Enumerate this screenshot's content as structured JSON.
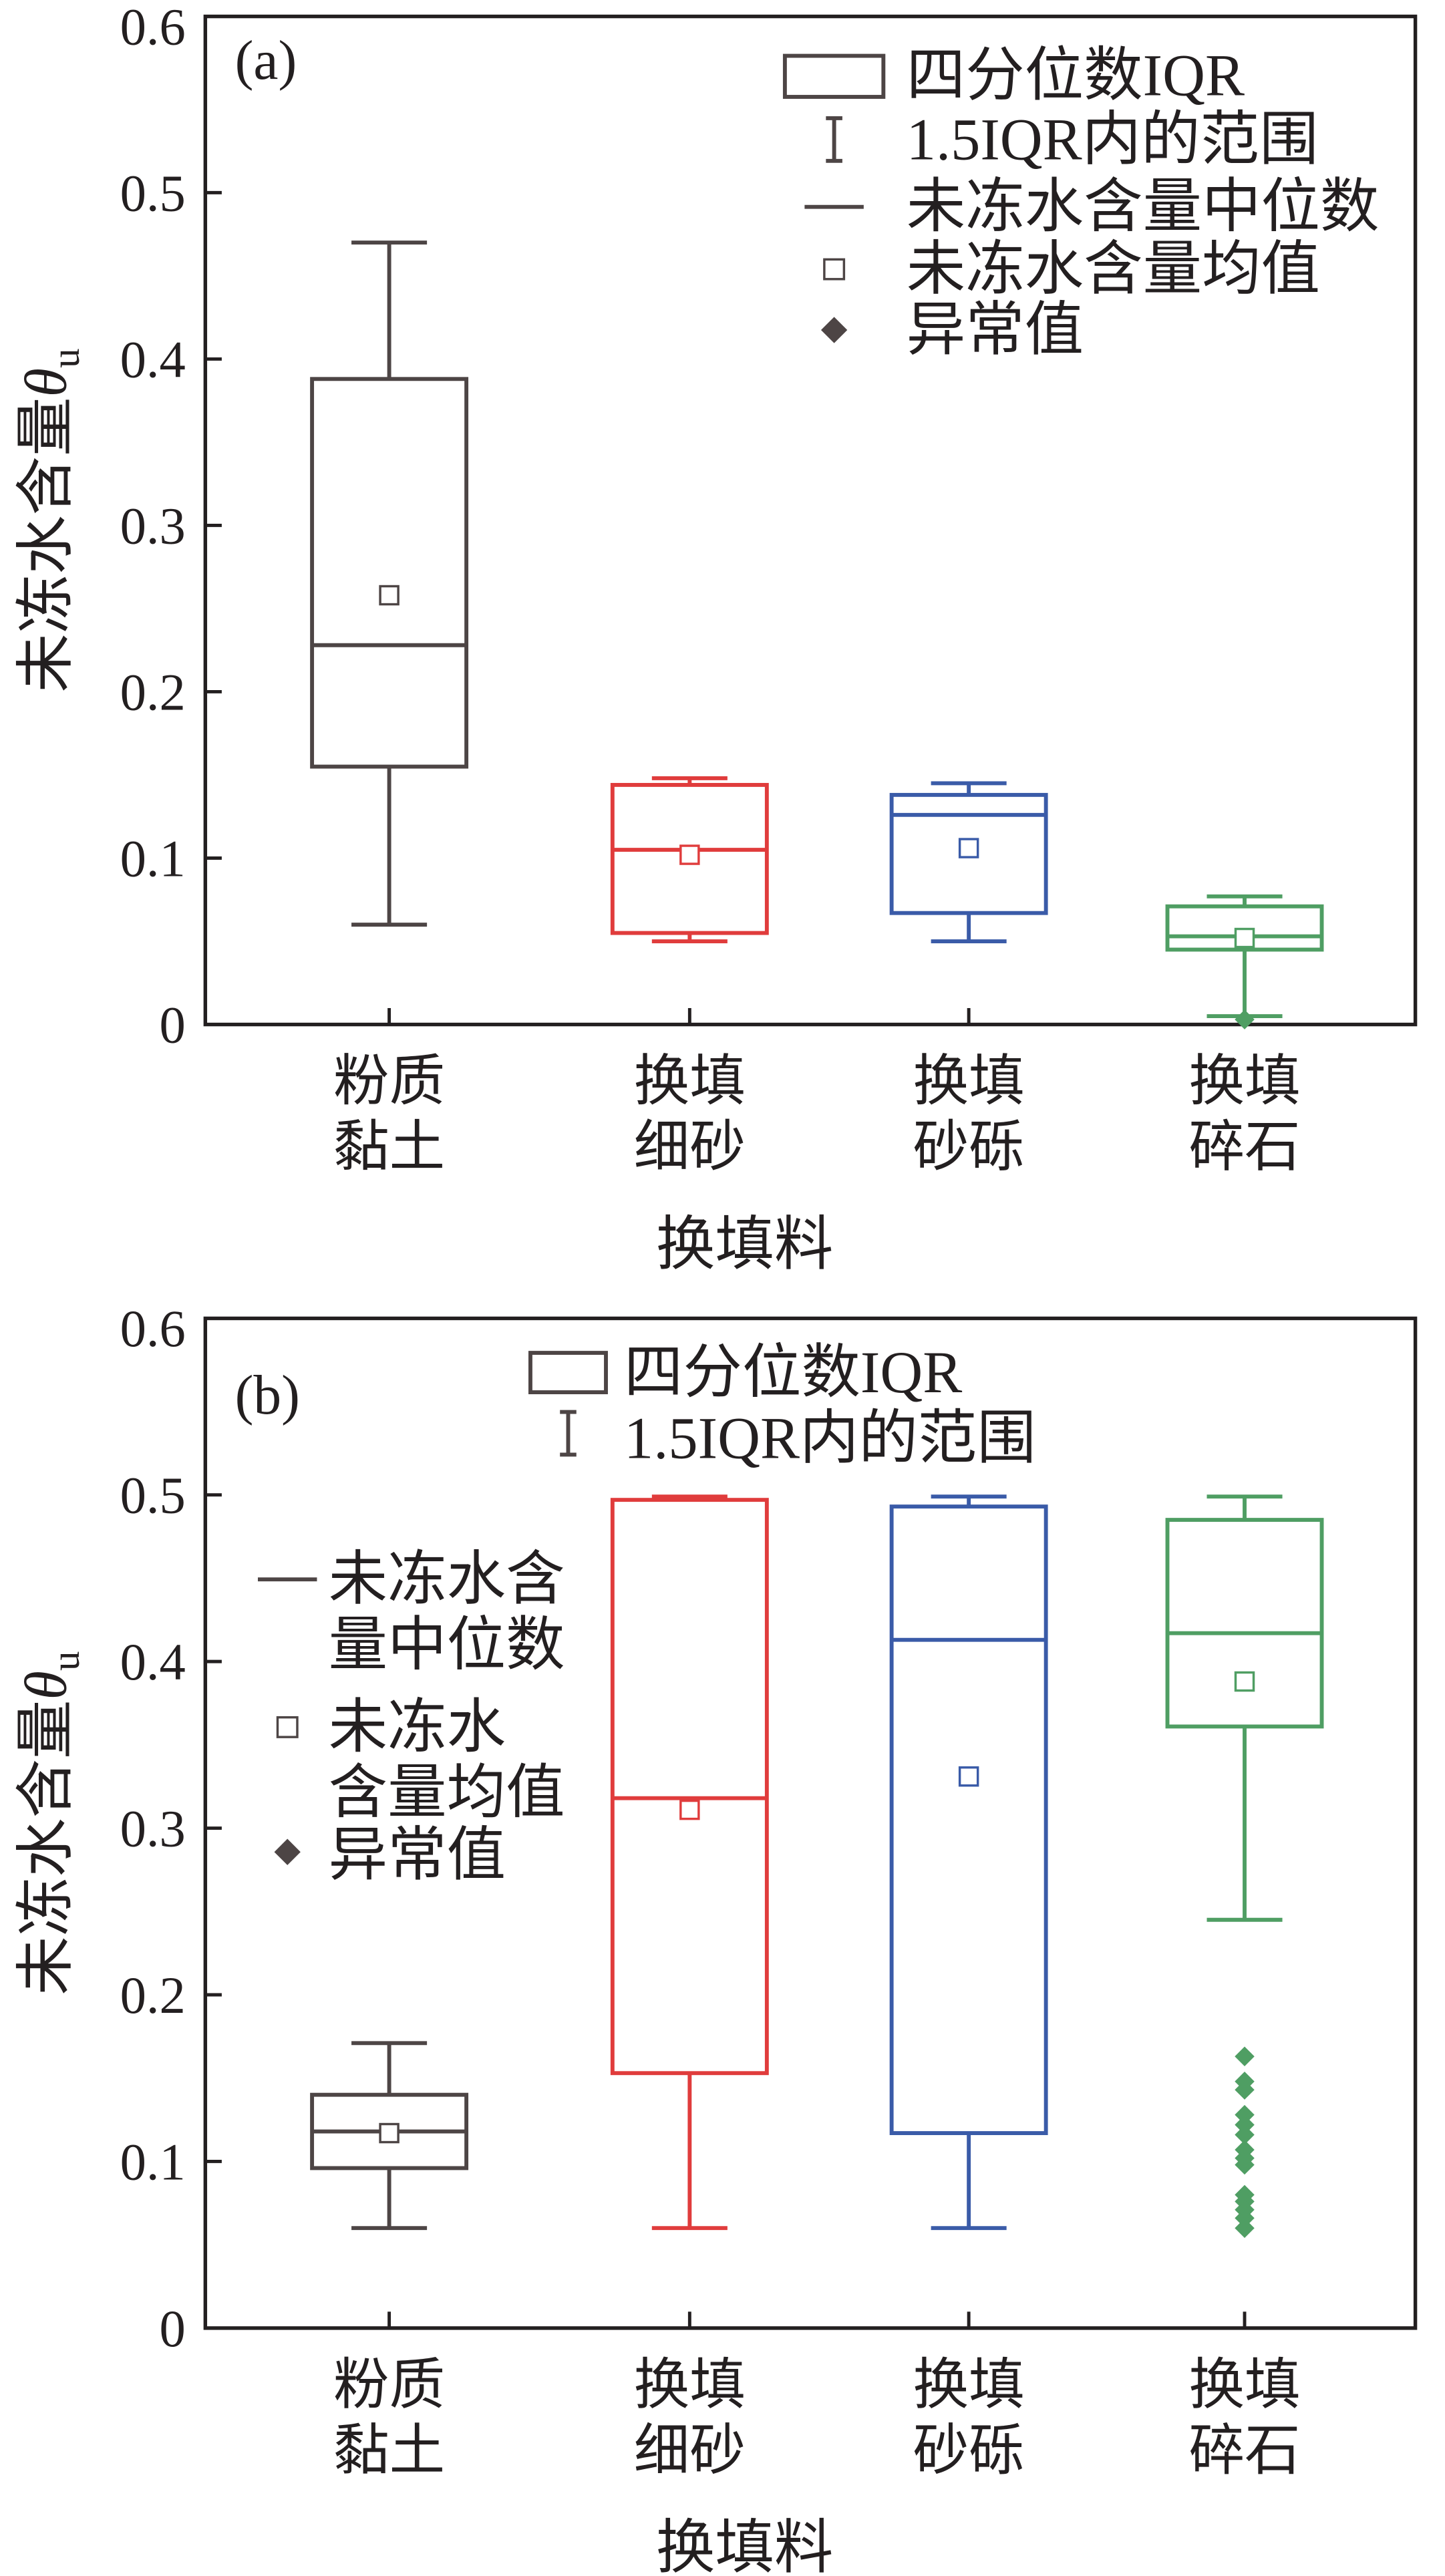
{
  "colors": {
    "axis": "#231f20",
    "silty_clay": "#4d4545",
    "fine_sand": "#e03c3c",
    "gravel_sand": "#3a5ba8",
    "crushed_stone": "#4f9e63",
    "legend": "#4d4545"
  },
  "chart_data": [
    {
      "type": "box",
      "panel_label": "(a)",
      "xlabel": "换填料",
      "ylabel": "未冻水含量θ",
      "ylabel_sub": "u",
      "ylim": [
        0,
        0.6
      ],
      "yticks": [
        "0",
        "0.1",
        "0.2",
        "0.3",
        "0.4",
        "0.5",
        "0.6"
      ],
      "categories": [
        [
          "粉质",
          "黏土"
        ],
        [
          "换填",
          "细砂"
        ],
        [
          "换填",
          "砂砾"
        ],
        [
          "换填",
          "碎石"
        ]
      ],
      "series": [
        {
          "color_key": "silty_clay",
          "whisker_low": 0.06,
          "q1": 0.155,
          "median": 0.228,
          "q3": 0.388,
          "whisker_high": 0.47,
          "mean": 0.258,
          "outliers": []
        },
        {
          "color_key": "fine_sand",
          "whisker_low": 0.05,
          "q1": 0.055,
          "median": 0.105,
          "q3": 0.144,
          "whisker_high": 0.148,
          "mean": 0.102,
          "outliers": []
        },
        {
          "color_key": "gravel_sand",
          "whisker_low": 0.05,
          "q1": 0.067,
          "median": 0.126,
          "q3": 0.138,
          "whisker_high": 0.145,
          "mean": 0.106,
          "outliers": []
        },
        {
          "color_key": "crushed_stone",
          "whisker_low": 0.005,
          "q1": 0.045,
          "median": 0.053,
          "q3": 0.071,
          "whisker_high": 0.077,
          "mean": 0.052,
          "outliers": [
            0.003
          ]
        }
      ],
      "legend": [
        {
          "symbol": "box",
          "lines": [
            "四分位数IQR"
          ]
        },
        {
          "symbol": "whisker",
          "lines": [
            "1.5IQR内的范围"
          ]
        },
        {
          "symbol": "median",
          "lines": [
            "未冻水含量中位数"
          ]
        },
        {
          "symbol": "mean",
          "lines": [
            "未冻水含量均值"
          ]
        },
        {
          "symbol": "outlier",
          "lines": [
            "异常值"
          ]
        }
      ]
    },
    {
      "type": "box",
      "panel_label": "(b)",
      "xlabel": "换填料",
      "ylabel": "未冻水含量θ",
      "ylabel_sub": "u",
      "ylim": [
        0,
        0.6
      ],
      "yticks": [
        "0",
        "0.1",
        "0.2",
        "0.3",
        "0.4",
        "0.5",
        "0.6"
      ],
      "categories": [
        [
          "粉质",
          "黏土"
        ],
        [
          "换填",
          "细砂"
        ],
        [
          "换填",
          "砂砾"
        ],
        [
          "换填",
          "碎石"
        ]
      ],
      "series": [
        {
          "color_key": "silty_clay",
          "whisker_low": 0.06,
          "q1": 0.096,
          "median": 0.118,
          "q3": 0.14,
          "whisker_high": 0.171,
          "mean": 0.117,
          "outliers": []
        },
        {
          "color_key": "fine_sand",
          "whisker_low": 0.06,
          "q1": 0.153,
          "median": 0.318,
          "q3": 0.497,
          "whisker_high": 0.499,
          "mean": 0.311,
          "outliers": []
        },
        {
          "color_key": "gravel_sand",
          "whisker_low": 0.06,
          "q1": 0.117,
          "median": 0.413,
          "q3": 0.493,
          "whisker_high": 0.499,
          "mean": 0.331,
          "outliers": []
        },
        {
          "color_key": "crushed_stone",
          "whisker_low": 0.245,
          "q1": 0.361,
          "median": 0.417,
          "q3": 0.485,
          "whisker_high": 0.499,
          "mean": 0.388,
          "outliers": [
            0.163,
            0.148,
            0.143,
            0.128,
            0.122,
            0.116,
            0.107,
            0.102,
            0.098,
            0.08,
            0.076,
            0.071,
            0.066,
            0.06
          ]
        }
      ],
      "legend": [
        {
          "symbol": "box",
          "lines": [
            "四分位数IQR"
          ]
        },
        {
          "symbol": "whisker",
          "lines": [
            "1.5IQR内的范围"
          ]
        },
        {
          "symbol": "median",
          "lines": [
            "未冻水含",
            "量中位数"
          ]
        },
        {
          "symbol": "mean",
          "lines": [
            "未冻水",
            "含量均值"
          ]
        },
        {
          "symbol": "outlier",
          "lines": [
            "异常值"
          ]
        }
      ]
    }
  ]
}
